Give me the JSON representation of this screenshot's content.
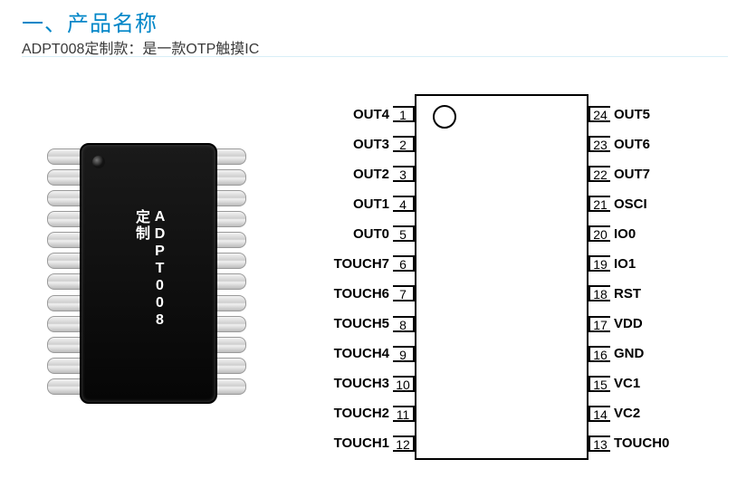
{
  "heading": {
    "text": "一、产品名称",
    "color": "#0086c8",
    "fontsize_pt": 18
  },
  "subtitle": {
    "text": "ADPT008定制款：是一款OTP触摸IC",
    "color": "#3a3a3a",
    "fontsize_pt": 12
  },
  "divider_color": "#d8eef7",
  "chip": {
    "label": "ADPT008定制",
    "body_color": "#0d0d0d",
    "text_color": "#ffffff",
    "lead_count_per_side": 12,
    "lead_colors": [
      "#f4f4f4",
      "#cfcfcf",
      "#f0f0f0",
      "#bcbcbc"
    ],
    "lead_border_color": "#9a9a9a",
    "dot_color": "#121212"
  },
  "pinout": {
    "body_border_color": "#000000",
    "body_background": "#ffffff",
    "notch_border_color": "#000000",
    "pin_font_size_pt": 11,
    "pin_number_font_size_pt": 10,
    "left": [
      {
        "num": "1",
        "name": "OUT4"
      },
      {
        "num": "2",
        "name": "OUT3"
      },
      {
        "num": "3",
        "name": "OUT2"
      },
      {
        "num": "4",
        "name": "OUT1"
      },
      {
        "num": "5",
        "name": "OUT0"
      },
      {
        "num": "6",
        "name": "TOUCH7"
      },
      {
        "num": "7",
        "name": "TOUCH6"
      },
      {
        "num": "8",
        "name": "TOUCH5"
      },
      {
        "num": "9",
        "name": "TOUCH4"
      },
      {
        "num": "10",
        "name": "TOUCH3"
      },
      {
        "num": "11",
        "name": "TOUCH2"
      },
      {
        "num": "12",
        "name": "TOUCH1"
      }
    ],
    "right": [
      {
        "num": "24",
        "name": "OUT5"
      },
      {
        "num": "23",
        "name": "OUT6"
      },
      {
        "num": "22",
        "name": "OUT7"
      },
      {
        "num": "21",
        "name": "OSCI"
      },
      {
        "num": "20",
        "name": "IO0"
      },
      {
        "num": "19",
        "name": "IO1"
      },
      {
        "num": "18",
        "name": "RST"
      },
      {
        "num": "17",
        "name": "VDD"
      },
      {
        "num": "16",
        "name": "GND"
      },
      {
        "num": "15",
        "name": "VC1"
      },
      {
        "num": "14",
        "name": "VC2"
      },
      {
        "num": "13",
        "name": "TOUCH0"
      }
    ]
  }
}
